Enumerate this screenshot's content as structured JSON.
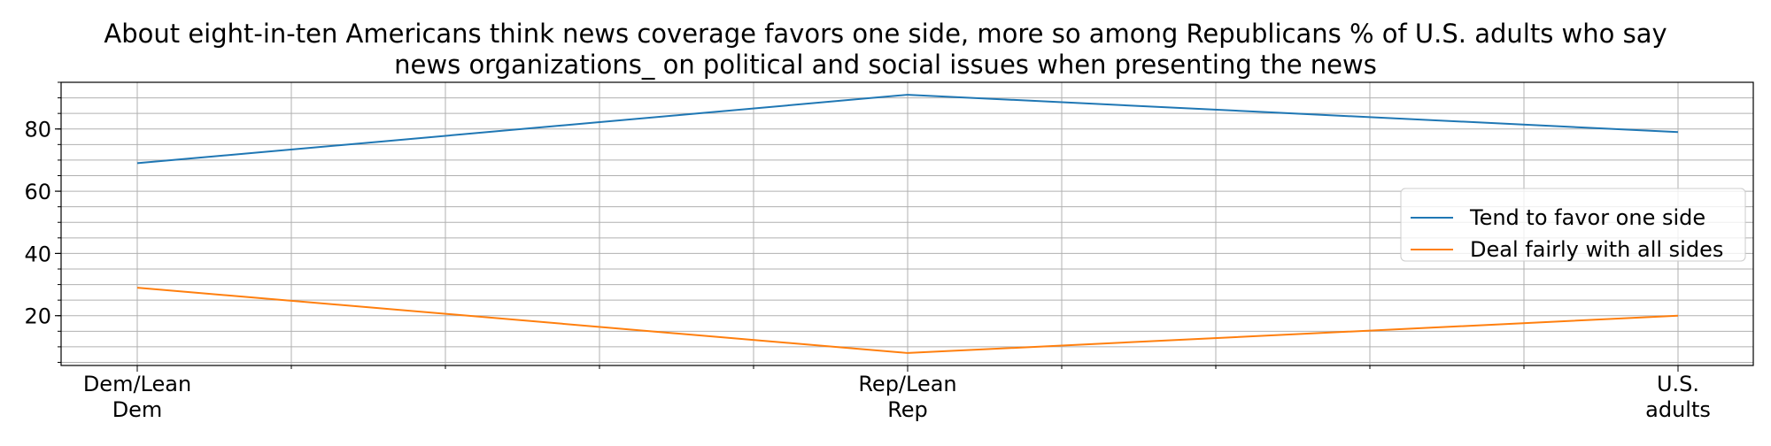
{
  "chart_data": {
    "type": "line",
    "title_lines": [
      "About eight-in-ten Americans think news coverage favors one side, more so among Republicans % of U.S. adults who say",
      "news organizations_ on political and social issues when presenting the news"
    ],
    "categories": [
      [
        "Dem/Lean",
        "Dem"
      ],
      [
        "Rep/Lean",
        "Rep"
      ],
      [
        "U.S.",
        "adults"
      ]
    ],
    "series": [
      {
        "name": "Tend to favor one side",
        "values": [
          69,
          91,
          79
        ],
        "color": "#1f77b4"
      },
      {
        "name": "Deal fairly with all sides",
        "values": [
          29,
          8,
          20
        ],
        "color": "#ff7f0e"
      }
    ],
    "ylim": [
      4,
      95
    ],
    "yticks": [
      20,
      40,
      60,
      80
    ],
    "y_minor_step": 5,
    "x_minor_divisions": 5,
    "grid": true,
    "legend_position": "center-right"
  }
}
